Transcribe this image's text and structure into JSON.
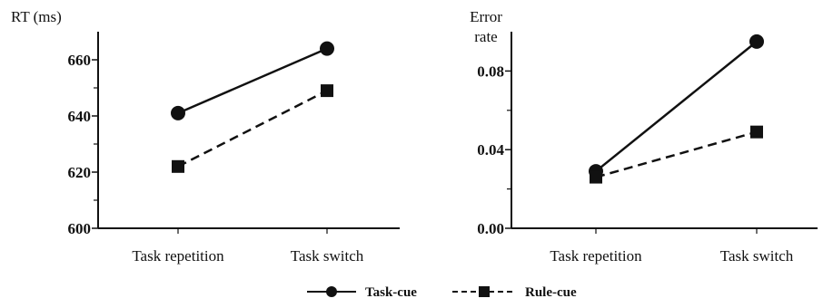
{
  "chart_data": [
    {
      "type": "line",
      "ylabel": "RT (ms)",
      "categories": [
        "Task repetition",
        "Task switch"
      ],
      "ylim": [
        600,
        670
      ],
      "yticks": [
        600,
        620,
        640,
        660
      ],
      "ytick_labels": [
        "600",
        "620",
        "640",
        "660"
      ],
      "series": [
        {
          "name": "Task-cue",
          "values": [
            641,
            664
          ],
          "color": "#111111",
          "dash": "solid",
          "marker": "circle"
        },
        {
          "name": "Rule-cue",
          "values": [
            622,
            649
          ],
          "color": "#111111",
          "dash": "dashed",
          "marker": "square"
        }
      ],
      "grid": false
    },
    {
      "type": "line",
      "ylabel_lines": [
        "Error",
        "rate"
      ],
      "categories": [
        "Task repetition",
        "Task switch"
      ],
      "ylim": [
        0,
        0.1
      ],
      "yticks": [
        0.0,
        0.04,
        0.08
      ],
      "ytick_labels": [
        "0.00",
        "0.04",
        "0.08"
      ],
      "series": [
        {
          "name": "Task-cue",
          "values": [
            0.029,
            0.095
          ],
          "color": "#111111",
          "dash": "solid",
          "marker": "circle"
        },
        {
          "name": "Rule-cue",
          "values": [
            0.026,
            0.049
          ],
          "color": "#111111",
          "dash": "dashed",
          "marker": "square"
        }
      ],
      "grid": false
    }
  ],
  "legend": {
    "position": "bottom-center",
    "items": [
      {
        "label": "Task-cue",
        "dash": "solid",
        "marker": "circle"
      },
      {
        "label": "Rule-cue",
        "dash": "dashed",
        "marker": "square"
      }
    ]
  }
}
